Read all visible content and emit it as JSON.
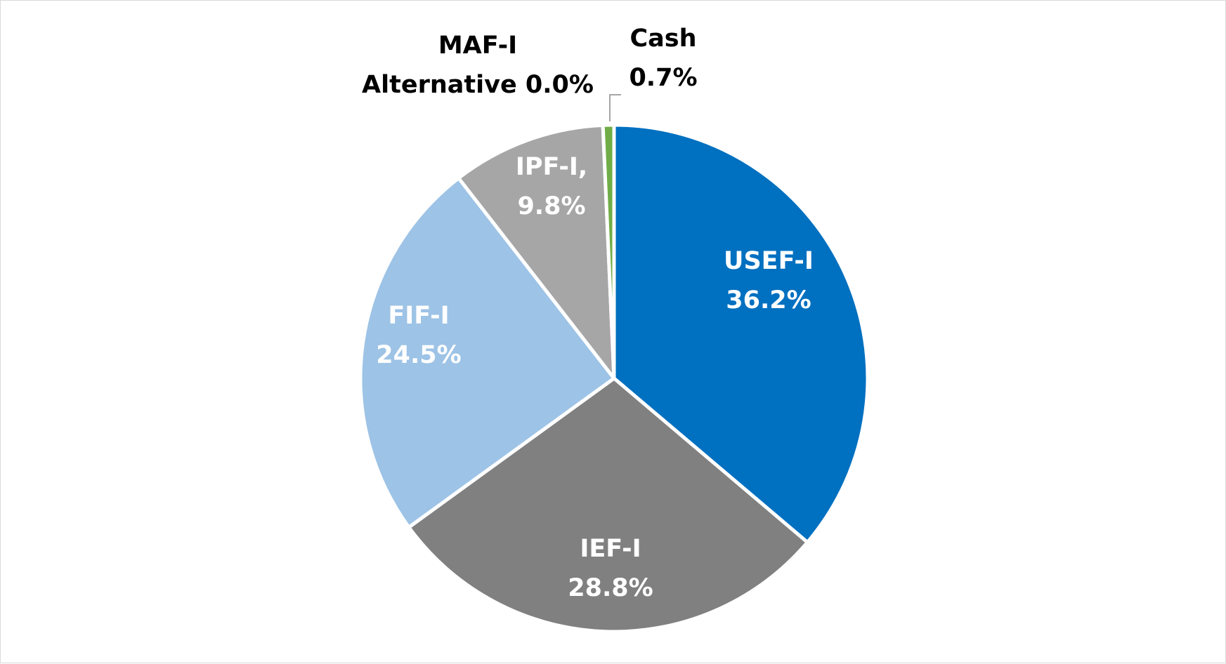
{
  "chart_data": {
    "type": "pie",
    "title": "",
    "start_angle_deg": 0,
    "direction": "clockwise",
    "slices": [
      {
        "label": "USEF-I",
        "value": 36.2,
        "display_value": "36.2%",
        "color": "#0070C0",
        "label_color": "#ffffff"
      },
      {
        "label": "IEF-I",
        "value": 28.8,
        "display_value": "28.8%",
        "color": "#808080",
        "label_color": "#ffffff"
      },
      {
        "label": "FIF-I",
        "value": 24.5,
        "display_value": "24.5%",
        "color": "#9DC3E6",
        "label_color": "#ffffff"
      },
      {
        "label": "IPF-I,",
        "value": 9.8,
        "display_value": "9.8%",
        "color": "#A6A6A6",
        "label_color": "#ffffff"
      },
      {
        "label": "MAF-I",
        "value": 0.0,
        "display_value": "0.0%",
        "sublabel": "Alternative",
        "color": "#BFBFBF",
        "label_color": "#000000"
      },
      {
        "label": "Cash",
        "value": 0.7,
        "display_value": "0.7%",
        "color": "#70AD47",
        "label_color": "#000000"
      }
    ]
  }
}
